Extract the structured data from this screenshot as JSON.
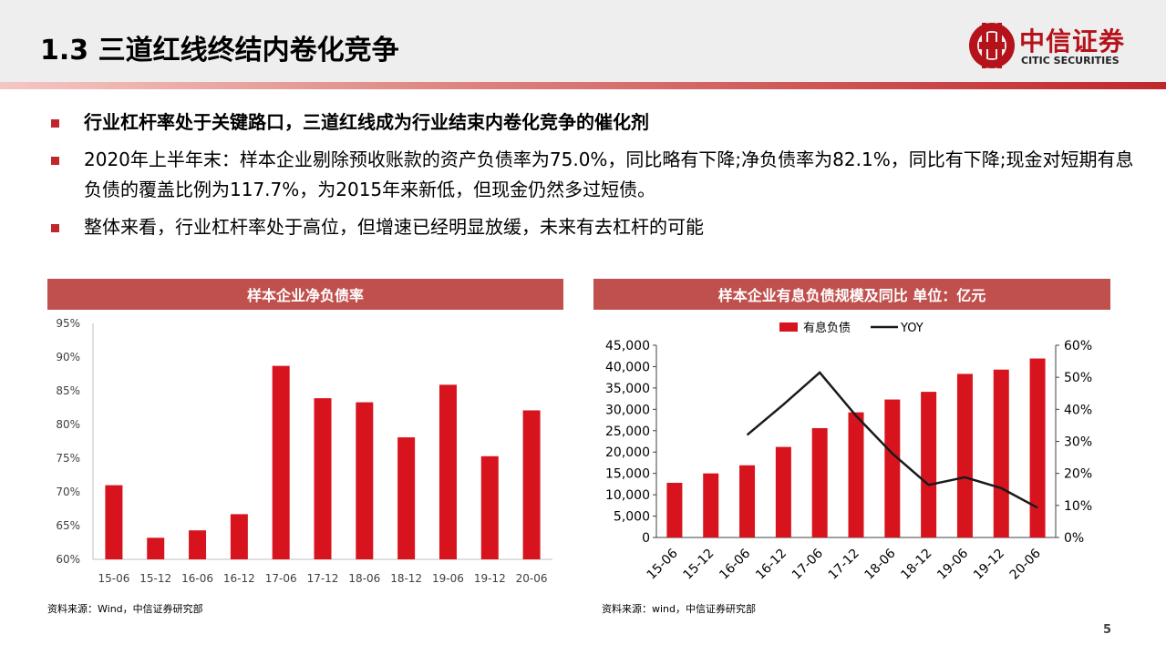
{
  "header": {
    "title": "1.3 三道红线终结内卷化竞争",
    "logo_cn": "中信证券",
    "logo_en": "CITIC SECURITIES"
  },
  "bullets": [
    "行业杠杆率处于关键路口，三道红线成为行业结束内卷化竞争的催化剂",
    "2020年上半年末：样本企业剔除预收账款的资产负债率为75.0%，同比略有下降;净负债率为82.1%，同比有下降;现金对短期有息负债的覆盖比例为117.7%，为2015年来新低，但现金仍然多过短债。",
    "整体来看，行业杠杆率处于高位，但增速已经明显放缓，未来有去杠杆的可能"
  ],
  "colors": {
    "accent": "#c0272d",
    "bar": "#d7141e",
    "panel_title_bg": "#c0504d",
    "line": "#1a1a1a"
  },
  "chart_data": [
    {
      "type": "bar",
      "title": "样本企业净负债率",
      "categories": [
        "15-06",
        "15-12",
        "16-06",
        "16-12",
        "17-06",
        "17-12",
        "18-06",
        "18-12",
        "19-06",
        "19-12",
        "20-06"
      ],
      "values": [
        71.0,
        63.2,
        64.3,
        66.7,
        88.7,
        83.9,
        83.3,
        78.1,
        85.9,
        75.3,
        82.1
      ],
      "ylim": [
        60,
        95
      ],
      "yticks": [
        "60%",
        "65%",
        "70%",
        "75%",
        "80%",
        "85%",
        "90%",
        "95%"
      ],
      "grid": false,
      "source": "资料来源：Wind，中信证券研究部"
    },
    {
      "type": "bar+line",
      "title": "样本企业有息负债规模及同比 单位：亿元",
      "categories": [
        "15-06",
        "15-12",
        "16-06",
        "16-12",
        "17-06",
        "17-12",
        "18-06",
        "18-12",
        "19-06",
        "19-12",
        "20-06"
      ],
      "series": [
        {
          "name": "有息负债",
          "type": "bar",
          "axis": "left",
          "values": [
            12800,
            15000,
            16900,
            21200,
            25600,
            29300,
            32300,
            34100,
            38300,
            39300,
            41900
          ]
        },
        {
          "name": "YOY",
          "type": "line",
          "axis": "right",
          "values": [
            null,
            null,
            32.0,
            41.5,
            51.5,
            38.0,
            26.2,
            16.4,
            18.8,
            15.4,
            9.3
          ]
        }
      ],
      "ylim_left": [
        0,
        45000
      ],
      "ylim_right": [
        0,
        60
      ],
      "yticks_left": [
        "0",
        "5,000",
        "10,000",
        "15,000",
        "20,000",
        "25,000",
        "30,000",
        "35,000",
        "40,000",
        "45,000"
      ],
      "yticks_right": [
        "0%",
        "10%",
        "20%",
        "30%",
        "40%",
        "50%",
        "60%"
      ],
      "legend_position": "top",
      "grid": false,
      "source": "资料来源：wind，中信证券研究部"
    }
  ],
  "page_number": "5"
}
